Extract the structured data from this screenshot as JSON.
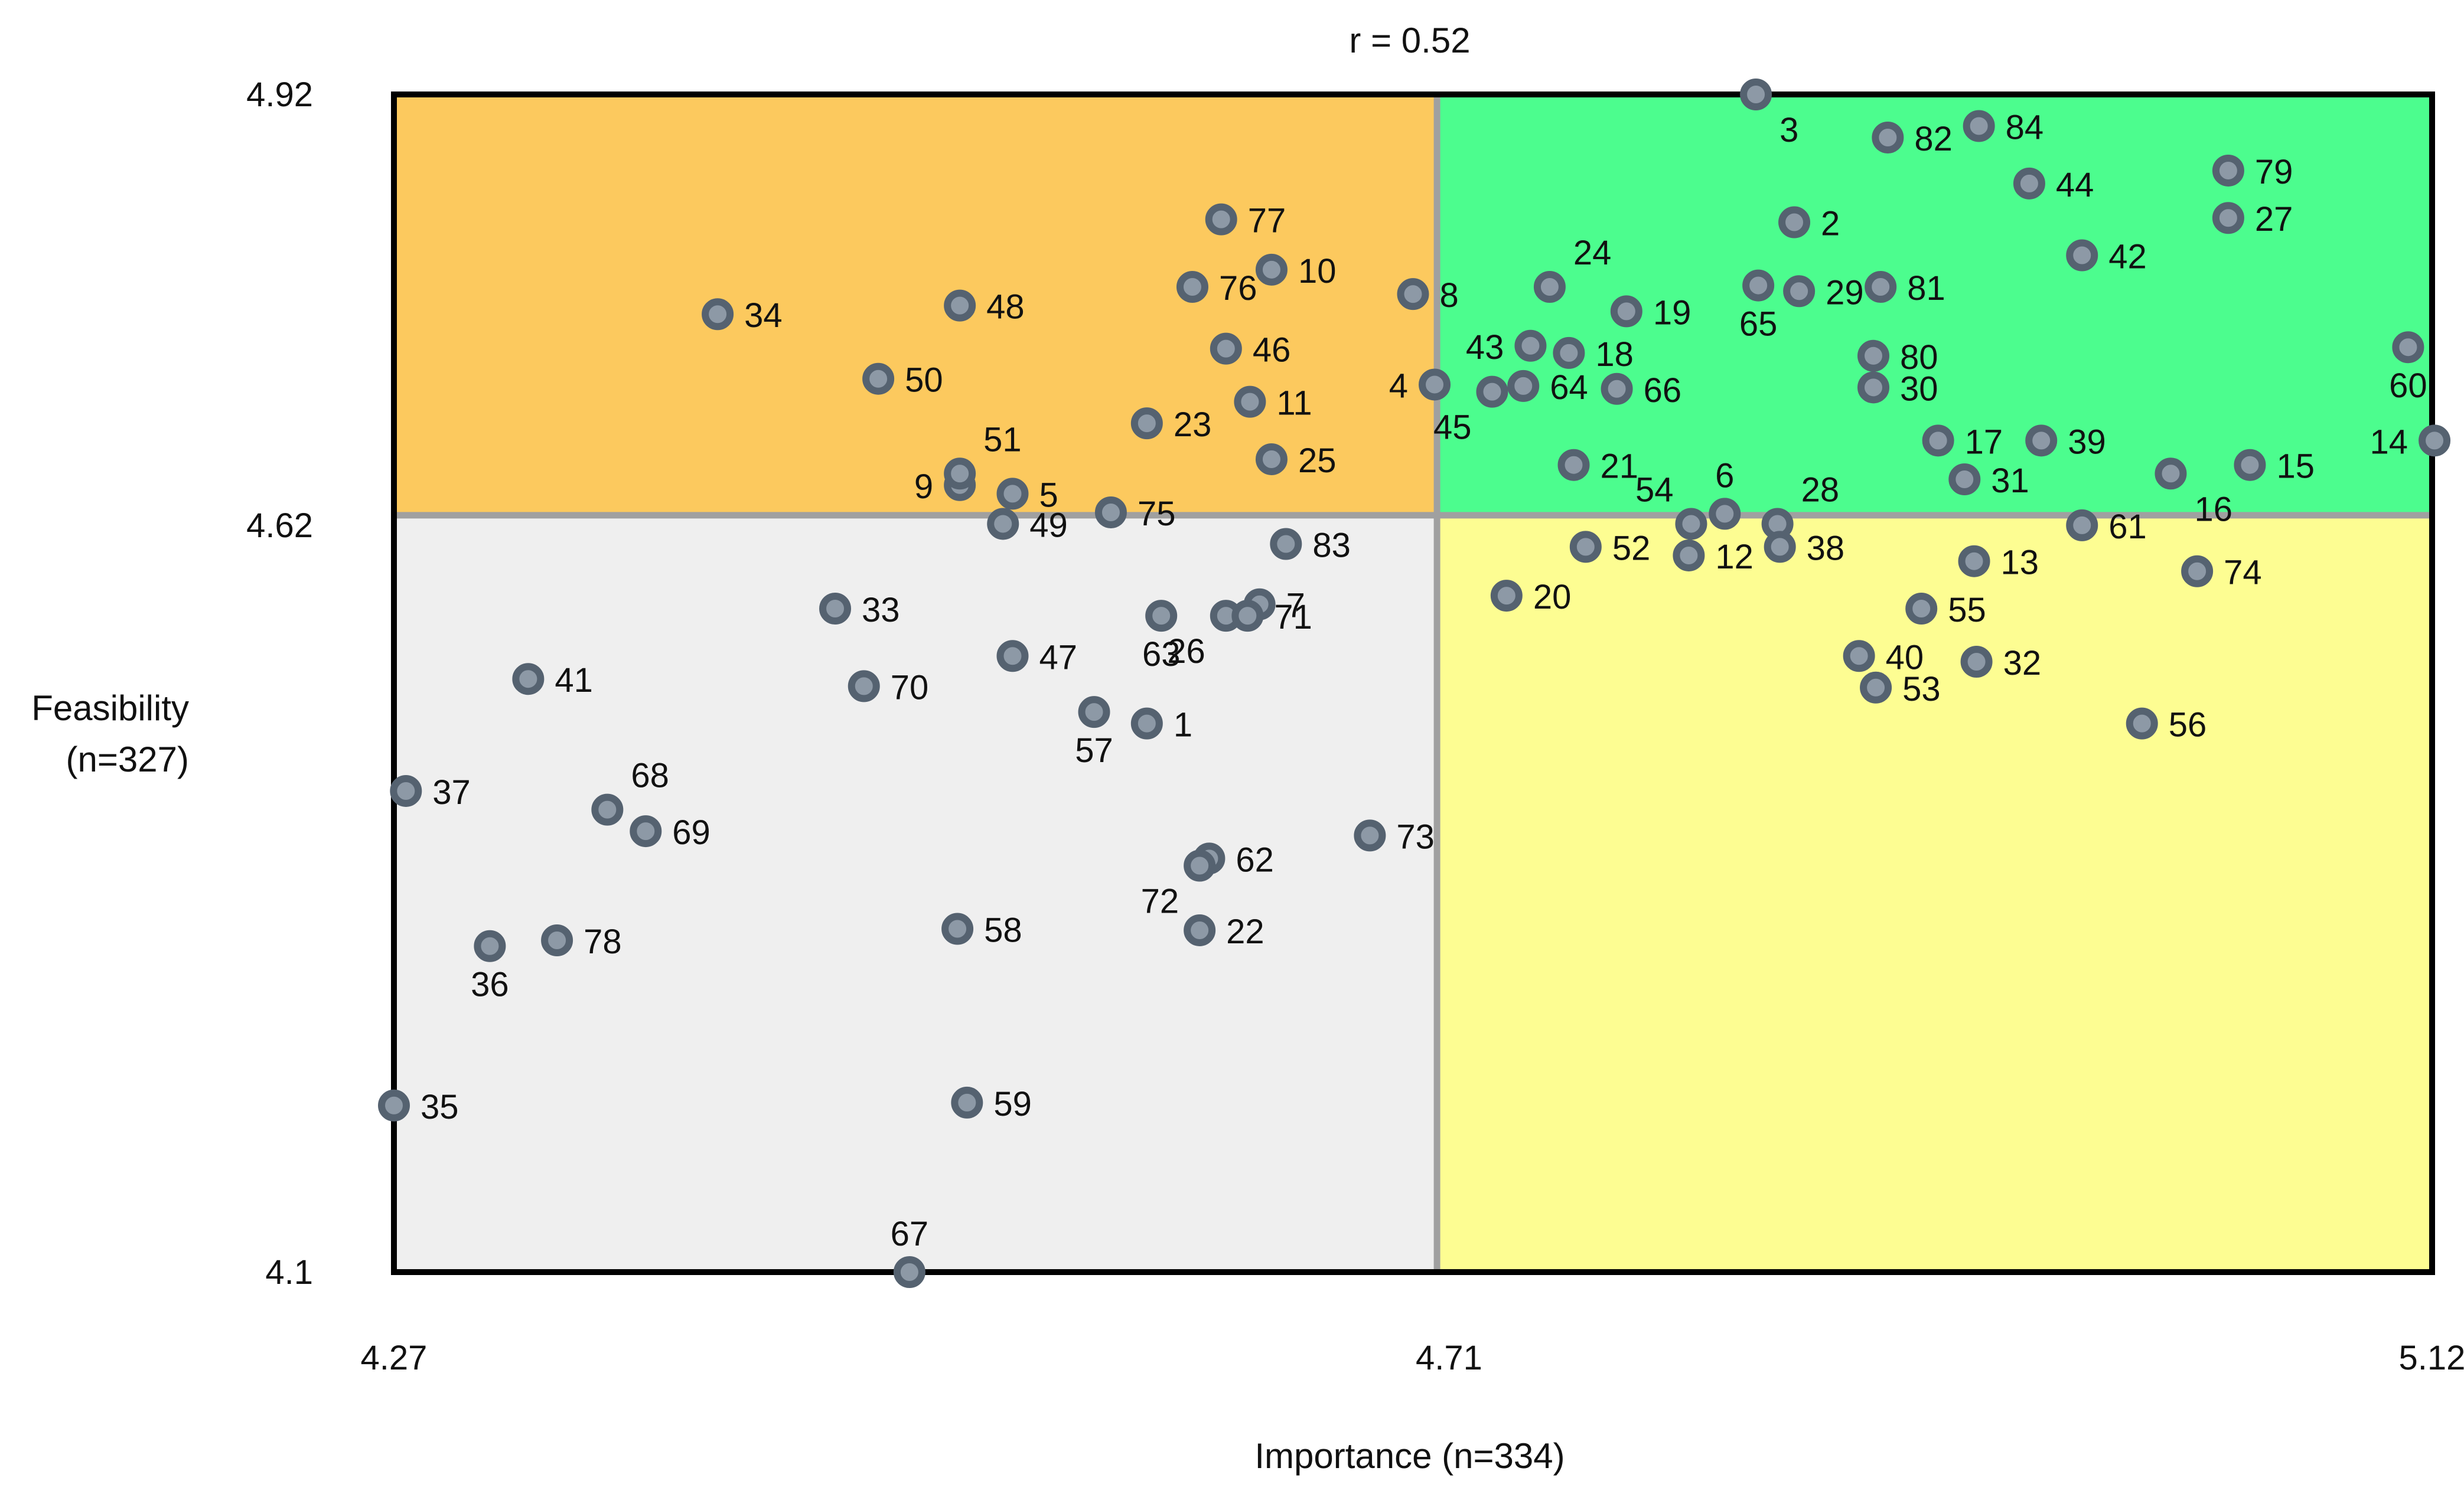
{
  "chart_data": {
    "type": "scatter",
    "title": "r = 0.52",
    "xlabel": "Importance (n=334)",
    "ylabel_lines": [
      "Feasibility",
      "(n=327)"
    ],
    "xlim": [
      4.27,
      5.12
    ],
    "ylim": [
      4.1,
      4.92
    ],
    "x_ticks": [
      {
        "value": 4.27,
        "label": "4.27"
      },
      {
        "value": 4.71,
        "label": "4.71"
      },
      {
        "value": 5.12,
        "label": "5.12"
      }
    ],
    "y_ticks": [
      {
        "value": 4.92,
        "label": "4.92"
      },
      {
        "value": 4.62,
        "label": "4.62"
      },
      {
        "value": 4.1,
        "label": "4.1"
      }
    ],
    "divider": {
      "x": 4.705,
      "y": 4.627
    },
    "quadrant_colors": {
      "top_left": "#fcc95e",
      "top_right": "#4cfd8e",
      "bottom_left": "#efefef",
      "bottom_right": "#fdfd92",
      "divider": "#a0a0a0",
      "frame": "#000000",
      "point_fill": "#8d99a6",
      "point_stroke": "#556270"
    },
    "points": [
      {
        "id": "1",
        "x": 4.584,
        "y": 4.482,
        "lp": "r"
      },
      {
        "id": "2",
        "x": 4.854,
        "y": 4.831,
        "lp": "r"
      },
      {
        "id": "3",
        "x": 4.838,
        "y": 4.92,
        "lp": "br"
      },
      {
        "id": "4",
        "x": 4.704,
        "y": 4.718,
        "lp": "l"
      },
      {
        "id": "5",
        "x": 4.528,
        "y": 4.642,
        "lp": "r"
      },
      {
        "id": "6",
        "x": 4.825,
        "y": 4.628,
        "lp": "a"
      },
      {
        "id": "7",
        "x": 4.631,
        "y": 4.565,
        "lp": "r"
      },
      {
        "id": "8",
        "x": 4.695,
        "y": 4.781,
        "lp": "r"
      },
      {
        "id": "9",
        "x": 4.506,
        "y": 4.648,
        "lp": "l"
      },
      {
        "id": "10",
        "x": 4.636,
        "y": 4.798,
        "lp": "r"
      },
      {
        "id": "11",
        "x": 4.627,
        "y": 4.706,
        "lp": "r"
      },
      {
        "id": "12",
        "x": 4.81,
        "y": 4.599,
        "lp": "r"
      },
      {
        "id": "13",
        "x": 4.929,
        "y": 4.595,
        "lp": "r"
      },
      {
        "id": "14",
        "x": 5.121,
        "y": 4.679,
        "lp": "l"
      },
      {
        "id": "15",
        "x": 5.044,
        "y": 4.662,
        "lp": "r"
      },
      {
        "id": "16",
        "x": 5.011,
        "y": 4.656,
        "lp": "br"
      },
      {
        "id": "17",
        "x": 4.914,
        "y": 4.679,
        "lp": "r"
      },
      {
        "id": "18",
        "x": 4.76,
        "y": 4.74,
        "lp": "r"
      },
      {
        "id": "19",
        "x": 4.784,
        "y": 4.769,
        "lp": "r"
      },
      {
        "id": "20",
        "x": 4.734,
        "y": 4.571,
        "lp": "r"
      },
      {
        "id": "21",
        "x": 4.762,
        "y": 4.662,
        "lp": "r"
      },
      {
        "id": "22",
        "x": 4.606,
        "y": 4.338,
        "lp": "r"
      },
      {
        "id": "23",
        "x": 4.584,
        "y": 4.691,
        "lp": "r"
      },
      {
        "id": "24",
        "x": 4.752,
        "y": 4.786,
        "lp": "ar"
      },
      {
        "id": "25",
        "x": 4.636,
        "y": 4.666,
        "lp": "r"
      },
      {
        "id": "26",
        "x": 4.617,
        "y": 4.557,
        "lp": "bl"
      },
      {
        "id": "27",
        "x": 5.035,
        "y": 4.834,
        "lp": "r"
      },
      {
        "id": "28",
        "x": 4.847,
        "y": 4.621,
        "lp": "ar"
      },
      {
        "id": "29",
        "x": 4.856,
        "y": 4.783,
        "lp": "r"
      },
      {
        "id": "30",
        "x": 4.887,
        "y": 4.716,
        "lp": "r"
      },
      {
        "id": "31",
        "x": 4.925,
        "y": 4.652,
        "lp": "r"
      },
      {
        "id": "32",
        "x": 4.93,
        "y": 4.525,
        "lp": "r"
      },
      {
        "id": "33",
        "x": 4.454,
        "y": 4.562,
        "lp": "r"
      },
      {
        "id": "34",
        "x": 4.405,
        "y": 4.767,
        "lp": "r"
      },
      {
        "id": "35",
        "x": 4.27,
        "y": 4.216,
        "lp": "r"
      },
      {
        "id": "36",
        "x": 4.31,
        "y": 4.327,
        "lp": "b"
      },
      {
        "id": "37",
        "x": 4.275,
        "y": 4.435,
        "lp": "r"
      },
      {
        "id": "38",
        "x": 4.848,
        "y": 4.605,
        "lp": "r"
      },
      {
        "id": "39",
        "x": 4.957,
        "y": 4.679,
        "lp": "r"
      },
      {
        "id": "40",
        "x": 4.881,
        "y": 4.529,
        "lp": "r"
      },
      {
        "id": "41",
        "x": 4.326,
        "y": 4.513,
        "lp": "r"
      },
      {
        "id": "42",
        "x": 4.974,
        "y": 4.808,
        "lp": "r"
      },
      {
        "id": "43",
        "x": 4.744,
        "y": 4.745,
        "lp": "l"
      },
      {
        "id": "44",
        "x": 4.952,
        "y": 4.858,
        "lp": "r"
      },
      {
        "id": "45",
        "x": 4.728,
        "y": 4.713,
        "lp": "bl"
      },
      {
        "id": "46",
        "x": 4.617,
        "y": 4.743,
        "lp": "r"
      },
      {
        "id": "47",
        "x": 4.528,
        "y": 4.529,
        "lp": "r"
      },
      {
        "id": "48",
        "x": 4.506,
        "y": 4.773,
        "lp": "r"
      },
      {
        "id": "49",
        "x": 4.524,
        "y": 4.621,
        "lp": "r"
      },
      {
        "id": "50",
        "x": 4.472,
        "y": 4.722,
        "lp": "r"
      },
      {
        "id": "51",
        "x": 4.506,
        "y": 4.656,
        "lp": "ar"
      },
      {
        "id": "52",
        "x": 4.767,
        "y": 4.605,
        "lp": "r"
      },
      {
        "id": "53",
        "x": 4.888,
        "y": 4.507,
        "lp": "r"
      },
      {
        "id": "54",
        "x": 4.811,
        "y": 4.621,
        "lp": "al"
      },
      {
        "id": "55",
        "x": 4.907,
        "y": 4.562,
        "lp": "r"
      },
      {
        "id": "56",
        "x": 4.999,
        "y": 4.482,
        "lp": "r"
      },
      {
        "id": "57",
        "x": 4.562,
        "y": 4.49,
        "lp": "b"
      },
      {
        "id": "58",
        "x": 4.505,
        "y": 4.339,
        "lp": "r"
      },
      {
        "id": "59",
        "x": 4.509,
        "y": 4.218,
        "lp": "r"
      },
      {
        "id": "60",
        "x": 5.11,
        "y": 4.744,
        "lp": "b"
      },
      {
        "id": "61",
        "x": 4.974,
        "y": 4.62,
        "lp": "r"
      },
      {
        "id": "62",
        "x": 4.61,
        "y": 4.388,
        "lp": "r"
      },
      {
        "id": "63",
        "x": 4.59,
        "y": 4.557,
        "lp": "b"
      },
      {
        "id": "64",
        "x": 4.741,
        "y": 4.717,
        "lp": "r"
      },
      {
        "id": "65",
        "x": 4.839,
        "y": 4.787,
        "lp": "b"
      },
      {
        "id": "66",
        "x": 4.78,
        "y": 4.715,
        "lp": "r"
      },
      {
        "id": "67",
        "x": 4.485,
        "y": 4.1,
        "lp": "a"
      },
      {
        "id": "68",
        "x": 4.359,
        "y": 4.422,
        "lp": "ar"
      },
      {
        "id": "69",
        "x": 4.375,
        "y": 4.407,
        "lp": "r"
      },
      {
        "id": "70",
        "x": 4.466,
        "y": 4.508,
        "lp": "r"
      },
      {
        "id": "71",
        "x": 4.626,
        "y": 4.557,
        "lp": "r"
      },
      {
        "id": "72",
        "x": 4.606,
        "y": 4.383,
        "lp": "bl"
      },
      {
        "id": "73",
        "x": 4.677,
        "y": 4.404,
        "lp": "r"
      },
      {
        "id": "74",
        "x": 5.022,
        "y": 4.588,
        "lp": "r"
      },
      {
        "id": "75",
        "x": 4.569,
        "y": 4.629,
        "lp": "r"
      },
      {
        "id": "76",
        "x": 4.603,
        "y": 4.786,
        "lp": "r"
      },
      {
        "id": "77",
        "x": 4.615,
        "y": 4.833,
        "lp": "r"
      },
      {
        "id": "78",
        "x": 4.338,
        "y": 4.331,
        "lp": "r"
      },
      {
        "id": "79",
        "x": 5.035,
        "y": 4.867,
        "lp": "r"
      },
      {
        "id": "80",
        "x": 4.887,
        "y": 4.738,
        "lp": "r"
      },
      {
        "id": "81",
        "x": 4.89,
        "y": 4.786,
        "lp": "r"
      },
      {
        "id": "82",
        "x": 4.893,
        "y": 4.89,
        "lp": "r"
      },
      {
        "id": "83",
        "x": 4.642,
        "y": 4.607,
        "lp": "r"
      },
      {
        "id": "84",
        "x": 4.931,
        "y": 4.898,
        "lp": "r"
      }
    ]
  }
}
